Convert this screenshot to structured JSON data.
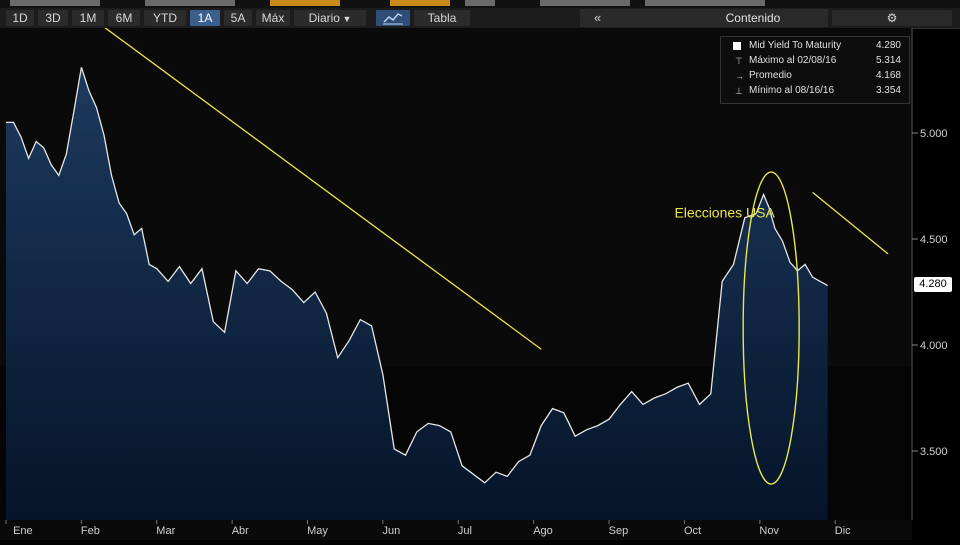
{
  "toolbar": {
    "buttons": [
      "1D",
      "3D",
      "1M",
      "6M",
      "YTD",
      "1A",
      "5A",
      "Máx"
    ],
    "active": "1A",
    "frequency": "Diario",
    "table_label": "Tabla",
    "content_label": "Contenido",
    "icons": {
      "back": "double-chevron-left-icon",
      "chart": "line-chart-icon",
      "settings": "gear-icon"
    }
  },
  "legend": {
    "rows": [
      {
        "label": "Mid Yield To Maturity",
        "value": "4.280",
        "marker": "square"
      },
      {
        "label": "Máximo al 02/08/16",
        "value": "5.314",
        "marker": "⊤"
      },
      {
        "label": "Promedio",
        "value": "4.168",
        "marker": "→"
      },
      {
        "label": "Mínimo al 08/16/16",
        "value": "3.354",
        "marker": "⊥"
      }
    ]
  },
  "colors": {
    "line": "#e6e6e6",
    "fill_top": "#1b3556",
    "fill_bottom": "#06152b",
    "annotation": "#e8e84a",
    "active_btn": "#3a5f8c"
  },
  "chart_data": {
    "type": "area",
    "title": "",
    "xlabel": "",
    "ylabel": "",
    "ylim": [
      3.2,
      5.7
    ],
    "yticks": [
      "5.000",
      "4.500",
      "4.000",
      "3.500"
    ],
    "ytick_values": [
      5.0,
      4.5,
      4.0,
      3.5
    ],
    "month_labels": [
      "Ene",
      "Feb",
      "Mar",
      "Abr",
      "May",
      "Jun",
      "Jul",
      "Ago",
      "Sep",
      "Oct",
      "Nov",
      "Dic"
    ],
    "month_positions": [
      0.2,
      1.1,
      2.1,
      3.1,
      4.1,
      5.1,
      6.1,
      7.1,
      8.1,
      9.1,
      10.1,
      11.1
    ],
    "last_value_label": "4.280",
    "series": [
      {
        "x": [
          0.0,
          0.1,
          0.2,
          0.3,
          0.4,
          0.5,
          0.6,
          0.7,
          0.8,
          0.9,
          1.0,
          1.1,
          1.2,
          1.3,
          1.4,
          1.5,
          1.6,
          1.7,
          1.8,
          1.9,
          2.0,
          2.15,
          2.3,
          2.45,
          2.6,
          2.75,
          2.9,
          3.05,
          3.2,
          3.35,
          3.5,
          3.65,
          3.8,
          3.95,
          4.1,
          4.25,
          4.4,
          4.55,
          4.7,
          4.85,
          5.0,
          5.15,
          5.3,
          5.45,
          5.6,
          5.75,
          5.9,
          6.05,
          6.2,
          6.35,
          6.5,
          6.65,
          6.8,
          6.95,
          7.1,
          7.25,
          7.4,
          7.55,
          7.7,
          7.85,
          8.0,
          8.15,
          8.3,
          8.45,
          8.6,
          8.75,
          8.9,
          9.05,
          9.2,
          9.35,
          9.5,
          9.65,
          9.8,
          9.95,
          10.05,
          10.12,
          10.2,
          10.3,
          10.4,
          10.5,
          10.6,
          10.7,
          10.8,
          10.9,
          11.0,
          11.1,
          11.2,
          11.3,
          11.4,
          11.5,
          11.6,
          11.7
        ],
        "y": [
          5.05,
          5.05,
          4.98,
          4.88,
          4.96,
          4.93,
          4.85,
          4.8,
          4.9,
          5.1,
          5.31,
          5.2,
          5.12,
          4.99,
          4.8,
          4.67,
          4.62,
          4.52,
          4.55,
          4.38,
          4.36,
          4.3,
          4.37,
          4.29,
          4.36,
          4.11,
          4.06,
          4.35,
          4.29,
          4.36,
          4.35,
          4.3,
          4.26,
          4.2,
          4.25,
          4.15,
          3.94,
          4.02,
          4.12,
          4.09,
          3.86,
          3.51,
          3.48,
          3.59,
          3.63,
          3.62,
          3.59,
          3.43,
          3.39,
          3.35,
          3.4,
          3.38,
          3.45,
          3.48,
          3.62,
          3.7,
          3.68,
          3.57,
          3.6,
          3.62,
          3.65,
          3.72,
          3.78,
          3.72,
          3.75,
          3.77,
          3.8,
          3.82,
          3.72,
          3.77,
          4.3,
          4.38,
          4.6,
          4.62,
          4.71,
          4.65,
          4.55,
          4.49,
          4.39,
          4.35,
          4.38,
          4.32,
          4.3,
          4.28,
          4.28,
          4.28,
          4.28,
          4.28,
          4.28,
          4.28,
          4.28,
          4.28
        ],
        "note_trim": 84
      }
    ],
    "trendlines": [
      {
        "x": [
          1.3,
          7.1
        ],
        "y": [
          5.5,
          3.98
        ]
      },
      {
        "x": [
          10.7,
          11.7
        ],
        "y": [
          4.72,
          4.43
        ]
      }
    ],
    "annotation": {
      "text": "Elecciones USA",
      "x": 9.0,
      "y": 4.62
    },
    "ellipse_center": {
      "x": 10.15,
      "y": 4.08
    }
  }
}
